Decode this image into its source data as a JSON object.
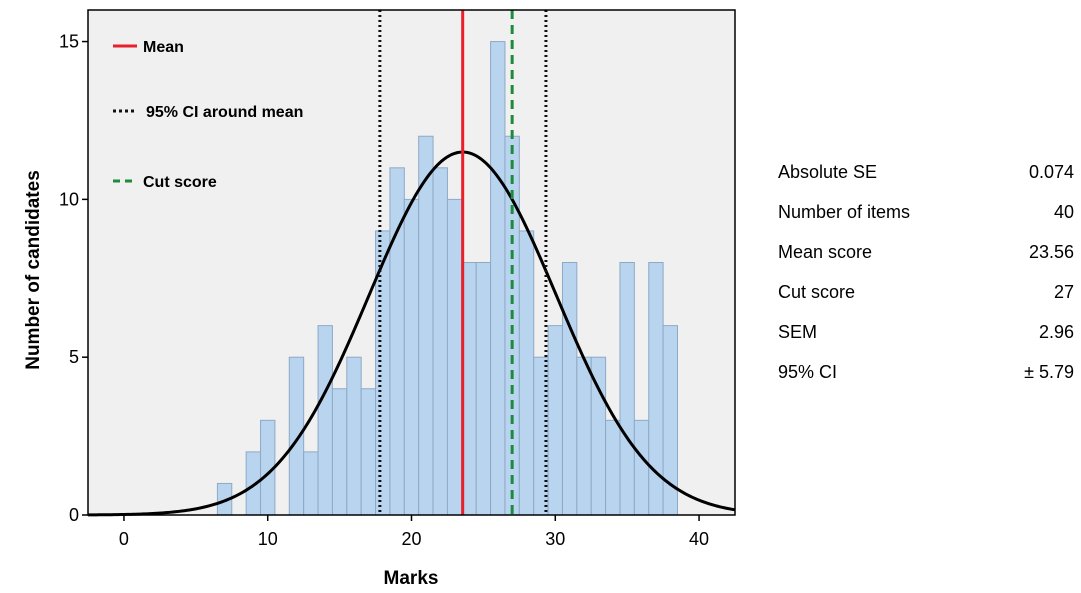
{
  "chart_data": {
    "type": "bar",
    "xlabel": "Marks",
    "ylabel": "Number of candidates",
    "xlim": [
      -2.5,
      42.5
    ],
    "ylim": [
      0,
      16
    ],
    "xticks": [
      0,
      10,
      20,
      30,
      40
    ],
    "yticks": [
      0,
      5,
      10,
      15
    ],
    "bin_width": 1,
    "bins": [
      {
        "x": 7,
        "count": 1
      },
      {
        "x": 9,
        "count": 2
      },
      {
        "x": 10,
        "count": 3
      },
      {
        "x": 12,
        "count": 5
      },
      {
        "x": 13,
        "count": 2
      },
      {
        "x": 14,
        "count": 6
      },
      {
        "x": 15,
        "count": 4
      },
      {
        "x": 16,
        "count": 5
      },
      {
        "x": 17,
        "count": 4
      },
      {
        "x": 18,
        "count": 9
      },
      {
        "x": 19,
        "count": 11
      },
      {
        "x": 20,
        "count": 10
      },
      {
        "x": 21,
        "count": 12
      },
      {
        "x": 22,
        "count": 11
      },
      {
        "x": 23,
        "count": 10
      },
      {
        "x": 24,
        "count": 8
      },
      {
        "x": 25,
        "count": 8
      },
      {
        "x": 26,
        "count": 15
      },
      {
        "x": 27,
        "count": 12
      },
      {
        "x": 28,
        "count": 9
      },
      {
        "x": 29,
        "count": 5
      },
      {
        "x": 30,
        "count": 6
      },
      {
        "x": 31,
        "count": 8
      },
      {
        "x": 32,
        "count": 5
      },
      {
        "x": 33,
        "count": 5
      },
      {
        "x": 34,
        "count": 3
      },
      {
        "x": 35,
        "count": 8
      },
      {
        "x": 36,
        "count": 3
      },
      {
        "x": 37,
        "count": 8
      },
      {
        "x": 38,
        "count": 6
      }
    ],
    "normal_curve": {
      "mean": 23.56,
      "sd": 6.5,
      "peak": 11.5
    },
    "reference_lines": [
      {
        "name": "Mean",
        "x": 23.56,
        "color": "#e8202a",
        "style": "solid"
      },
      {
        "name": "95% CI around mean",
        "x": 17.8,
        "color": "#111111",
        "style": "dotted"
      },
      {
        "name": "95% CI around mean",
        "x": 29.35,
        "color": "#111111",
        "style": "dotted"
      },
      {
        "name": "Cut score",
        "x": 27,
        "color": "#1e8a3c",
        "style": "dashed"
      }
    ],
    "legend": [
      {
        "label": "Mean",
        "color": "#e8202a",
        "style": "solid"
      },
      {
        "label": "95% CI around mean",
        "color": "#111111",
        "style": "dotted"
      },
      {
        "label": "Cut score",
        "color": "#1e8a3c",
        "style": "dashed"
      }
    ],
    "legend_position": "top-left",
    "bar_color": "#b8d4ee",
    "bar_edge_color": "#8ea9c6",
    "plot_background": "#f0f0f0"
  },
  "stats": [
    {
      "label": "Absolute SE",
      "value": "0.074"
    },
    {
      "label": "Number of items",
      "value": "40"
    },
    {
      "label": "Mean score",
      "value": "23.56"
    },
    {
      "label": "Cut score",
      "value": "27"
    },
    {
      "label": "SEM",
      "value": "2.96"
    },
    {
      "label": "95% CI",
      "value": "± 5.79"
    }
  ]
}
